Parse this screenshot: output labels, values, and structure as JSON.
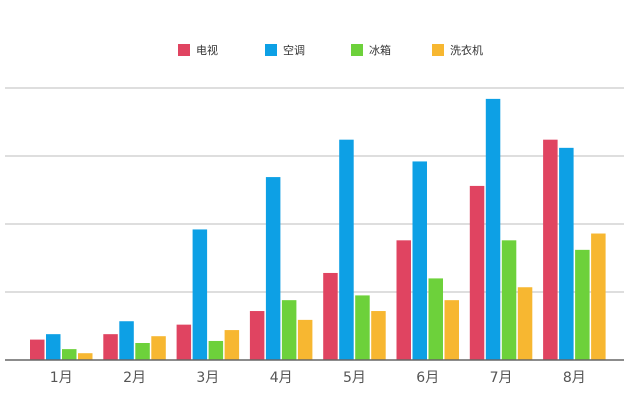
{
  "chart_data": {
    "type": "bar",
    "title": "",
    "xlabel": "",
    "ylabel": "",
    "ylim": [
      0,
      40
    ],
    "grid": true,
    "legend_position": "top",
    "categories": [
      "1月",
      "2月",
      "3月",
      "4月",
      "5月",
      "6月",
      "7月",
      "8月"
    ],
    "series": [
      {
        "name": "电视",
        "color": "#E04461",
        "values": [
          3,
          3.8,
          5.2,
          7.2,
          12.8,
          17.6,
          25.6,
          32.4
        ]
      },
      {
        "name": "空调",
        "color": "#0DA0E5",
        "values": [
          3.8,
          5.7,
          19.2,
          26.9,
          32.4,
          29.2,
          38.4,
          31.2
        ]
      },
      {
        "name": "冰箱",
        "color": "#6DD13B",
        "values": [
          1.6,
          2.5,
          2.8,
          8.8,
          9.5,
          12,
          17.6,
          16.2
        ]
      },
      {
        "name": "洗衣机",
        "color": "#F7B731",
        "values": [
          1,
          3.5,
          4.4,
          5.9,
          7.2,
          8.8,
          10.7,
          18.6
        ]
      }
    ]
  }
}
